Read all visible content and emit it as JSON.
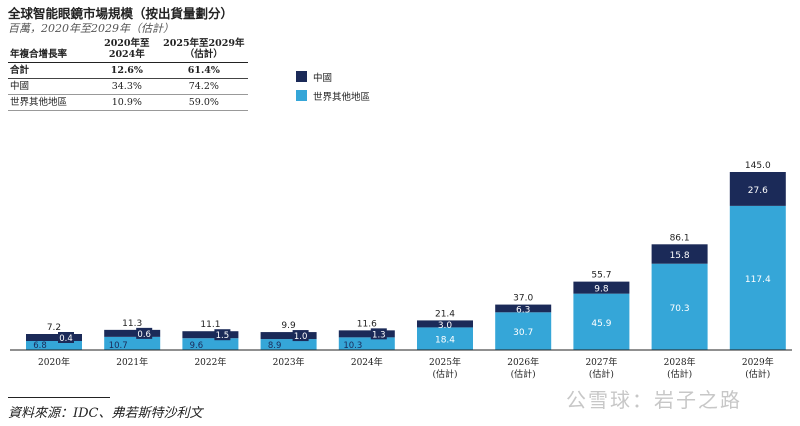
{
  "header": {
    "title": "全球智能眼鏡市場規模（按出貨量劃分）",
    "subtitle": "百萬，2020年至2029年（估計）"
  },
  "cagr_table": {
    "headers": [
      "年複合增長率",
      "2020年至2024年",
      "2025年至2029年（估計）"
    ],
    "rows": [
      {
        "label": "合計",
        "a": "12.6%",
        "b": "61.4%"
      },
      {
        "label": "中國",
        "a": "34.3%",
        "b": "74.2%"
      },
      {
        "label": "世界其他地區",
        "a": "10.9%",
        "b": "59.0%"
      }
    ]
  },
  "legend": {
    "china": "中國",
    "row": "世界其他地區"
  },
  "colors": {
    "china": "#1b2a58",
    "row": "#35a6d8",
    "axis": "#222222"
  },
  "chart_data": {
    "type": "bar",
    "stacked": true,
    "title": "全球智能眼鏡市場規模（按出貨量劃分）",
    "unit": "百萬",
    "categories": [
      "2020年",
      "2021年",
      "2022年",
      "2023年",
      "2024年",
      "2025年\n(估計)",
      "2026年\n(估計)",
      "2027年\n(估計)",
      "2028年\n(估計)",
      "2029年\n(估計)"
    ],
    "series": [
      {
        "name": "世界其他地區",
        "values": [
          6.8,
          10.7,
          9.6,
          8.9,
          10.3,
          18.4,
          30.7,
          45.9,
          70.3,
          117.4
        ]
      },
      {
        "name": "中國",
        "values": [
          0.4,
          0.6,
          1.5,
          1.0,
          1.3,
          3.0,
          6.3,
          9.8,
          15.8,
          27.6
        ]
      }
    ],
    "totals": [
      7.2,
      11.3,
      11.1,
      9.9,
      11.6,
      21.4,
      37.0,
      55.7,
      86.1,
      145.0
    ],
    "ylim": [
      0,
      145
    ],
    "xlabel": "",
    "ylabel": ""
  },
  "source": "資料來源：IDC、弗若斯特沙利文",
  "watermark": "公雪球：岩子之路"
}
